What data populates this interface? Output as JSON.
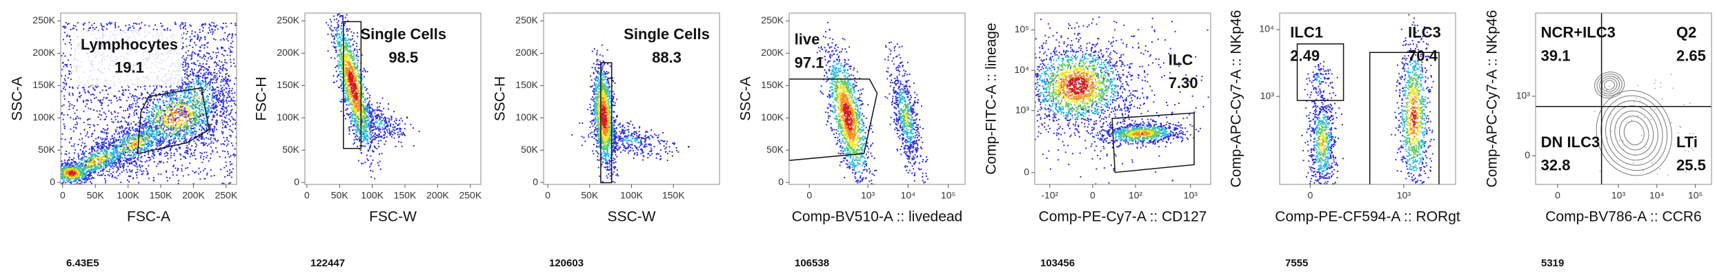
{
  "chart_data": [
    {
      "type": "density",
      "categories": [
        "Lymphocytes"
      ],
      "values": [
        19.1
      ],
      "xlabel": "FSC-A",
      "ylabel": "SSC-A",
      "xscale": "linear",
      "yscale": "linear",
      "xlim": [
        -3000,
        266000
      ],
      "ylim": [
        -3000,
        262144
      ],
      "xticks": [
        0,
        {
          "value": 50000,
          "label": "50K"
        },
        {
          "value": 100000,
          "label": "100K"
        },
        {
          "value": 150000,
          "label": "150K"
        },
        {
          "value": 200000,
          "label": "200K"
        },
        {
          "value": 250000,
          "label": "250K"
        }
      ],
      "yticks": [
        0,
        {
          "value": 50000,
          "label": "50K"
        },
        {
          "value": 100000,
          "label": "100K"
        },
        {
          "value": 150000,
          "label": "150K"
        },
        {
          "value": 200000,
          "label": "200K"
        },
        {
          "value": 250000,
          "label": "250K"
        }
      ],
      "events": {
        "value": 643000,
        "label": "6.43E5"
      }
    },
    {
      "type": "density",
      "categories": [
        "Single Cells"
      ],
      "values": [
        98.5
      ],
      "xlabel": "FSC-W",
      "ylabel": "FSC-H",
      "xscale": "linear",
      "yscale": "linear",
      "xlim": [
        -3000,
        266000
      ],
      "ylim": [
        -3000,
        262144
      ],
      "xticks": [
        0,
        {
          "value": 50000,
          "label": "50K"
        },
        {
          "value": 100000,
          "label": "100K"
        },
        {
          "value": 150000,
          "label": "150K"
        },
        {
          "value": 200000,
          "label": "200K"
        },
        {
          "value": 250000,
          "label": "250K"
        }
      ],
      "yticks": [
        0,
        {
          "value": 50000,
          "label": "50K"
        },
        {
          "value": 100000,
          "label": "100K"
        },
        {
          "value": 150000,
          "label": "150K"
        },
        {
          "value": 200000,
          "label": "200K"
        },
        {
          "value": 250000,
          "label": "250K"
        }
      ],
      "events": 122447
    },
    {
      "type": "density",
      "categories": [
        "Single Cells"
      ],
      "values": [
        88.3
      ],
      "xlabel": "SSC-W",
      "ylabel": "SSC-H",
      "xscale": "linear",
      "yscale": "linear",
      "xlim": [
        -5000,
        205000
      ],
      "ylim": [
        -3000,
        262144
      ],
      "xticks": [
        0,
        {
          "value": 50000,
          "label": "50K"
        },
        {
          "value": 100000,
          "label": "100K"
        },
        {
          "value": 150000,
          "label": "150K"
        }
      ],
      "yticks": [
        0,
        {
          "value": 50000,
          "label": "50K"
        },
        {
          "value": 100000,
          "label": "100K"
        },
        {
          "value": 150000,
          "label": "150K"
        },
        {
          "value": 200000,
          "label": "200K"
        },
        {
          "value": 250000,
          "label": "250K"
        }
      ],
      "events": 120603
    },
    {
      "type": "density",
      "categories": [
        "live"
      ],
      "values": [
        97.1
      ],
      "xlabel": "Comp-BV510-A :: livedead",
      "ylabel": "SSC-A",
      "xscale": "biexponential",
      "yscale": "linear",
      "xlim": [
        -100,
        262144
      ],
      "ylim": [
        -3000,
        262144
      ],
      "xticks": [
        0,
        {
          "value": 1000,
          "label": "10³"
        },
        {
          "value": 10000,
          "label": "10⁴"
        },
        {
          "value": 100000,
          "label": "10⁵"
        }
      ],
      "yticks": [
        0,
        {
          "value": 50000,
          "label": "50K"
        },
        {
          "value": 100000,
          "label": "100K"
        },
        {
          "value": 150000,
          "label": "150K"
        },
        {
          "value": 200000,
          "label": "200K"
        },
        {
          "value": 250000,
          "label": "250K"
        }
      ],
      "events": 106538
    },
    {
      "type": "density",
      "categories": [
        "ILC"
      ],
      "values": [
        7.3
      ],
      "value_labels": [
        "7.30"
      ],
      "xlabel": "Comp-PE-Cy7-A :: CD127",
      "ylabel": "Comp-FITC-A :: lineage",
      "xscale": "biexponential",
      "yscale": "biexponential",
      "xlim": [
        -190,
        2300
      ],
      "ylim": [
        -42,
        262144
      ],
      "xticks": [
        {
          "value": -100,
          "label": "-10²"
        },
        0,
        {
          "value": 100,
          "label": "10²"
        },
        {
          "value": 1000,
          "label": "10³"
        }
      ],
      "yticks": [
        0,
        {
          "value": 1000,
          "label": "10³"
        },
        {
          "value": 10000,
          "label": "10⁴"
        },
        {
          "value": 100000,
          "label": "10⁵"
        }
      ],
      "events": 103456
    },
    {
      "type": "density",
      "categories": [
        "ILC1",
        "ILC3"
      ],
      "values": [
        2.49,
        70.4
      ],
      "xlabel": "Comp-PE-CF594-A :: RORgt",
      "ylabel": "Comp-APC-Cy7-A :: NKp46",
      "xscale": "biexponential",
      "yscale": "biexponential",
      "xlim": [
        -60,
        9560
      ],
      "ylim": [
        -40,
        17600
      ],
      "xticks": [
        0,
        {
          "value": 1000,
          "label": "10³"
        }
      ],
      "yticks": [
        {
          "value": 1000,
          "label": "10³"
        },
        {
          "value": 10000,
          "label": "10⁴"
        }
      ],
      "events": 7555
    },
    {
      "type": "contour",
      "categories": [
        "NCR+ILC3",
        "Q2",
        "DN ILC3",
        "LTi"
      ],
      "values": [
        39.1,
        2.65,
        32.8,
        25.5
      ],
      "xlabel": "Comp-BV786-A :: CCR6",
      "ylabel": "Comp-APC-Cy7-A :: NKp46",
      "xscale": "biexponential",
      "yscale": "biexponential",
      "xlim": [
        -92,
        262144
      ],
      "ylim": [
        -146,
        165000
      ],
      "xticks": [
        0,
        {
          "value": 1000,
          "label": "10³"
        },
        {
          "value": 10000,
          "label": "10⁴"
        },
        {
          "value": 100000,
          "label": "10⁵"
        }
      ],
      "yticks": [
        0,
        {
          "value": 1000,
          "label": "10³"
        }
      ],
      "events": 5319
    }
  ]
}
